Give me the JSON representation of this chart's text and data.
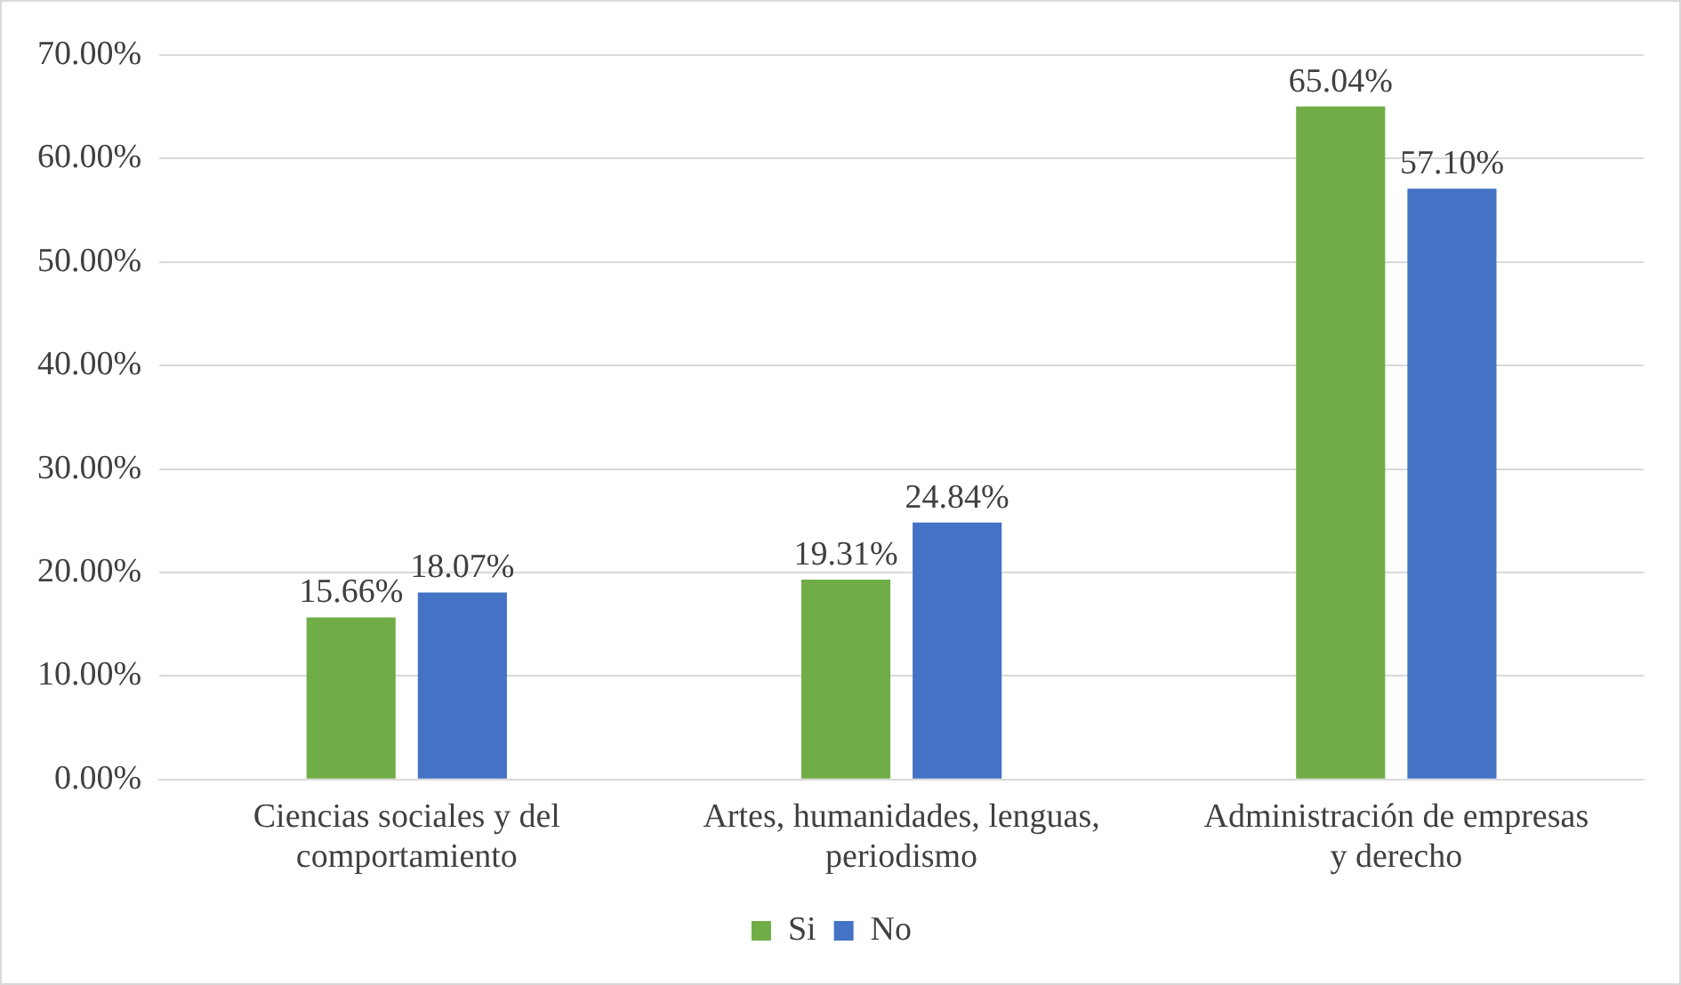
{
  "chart_data": {
    "type": "bar",
    "categories": [
      "Ciencias sociales y del comportamiento",
      "Artes, humanidades, lenguas, periodismo",
      "Administración de empresas y derecho"
    ],
    "series": [
      {
        "name": "Si",
        "color": "#70ad47",
        "values": [
          15.66,
          19.31,
          65.04
        ],
        "value_labels": [
          "15.66%",
          "19.31%",
          "65.04%"
        ]
      },
      {
        "name": "No",
        "color": "#4472c4",
        "values": [
          18.07,
          24.84,
          57.1
        ],
        "value_labels": [
          "18.07%",
          "24.84%",
          "57.10%"
        ]
      }
    ],
    "ylim": [
      0,
      70
    ],
    "yticks": [
      {
        "value": 0,
        "label": "0.00%"
      },
      {
        "value": 10,
        "label": "10.00%"
      },
      {
        "value": 20,
        "label": "20.00%"
      },
      {
        "value": 30,
        "label": "30.00%"
      },
      {
        "value": 40,
        "label": "40.00%"
      },
      {
        "value": 50,
        "label": "50.00%"
      },
      {
        "value": 60,
        "label": "60.00%"
      },
      {
        "value": 70,
        "label": "70.00%"
      }
    ],
    "grid": "y",
    "legend": "bottom"
  }
}
